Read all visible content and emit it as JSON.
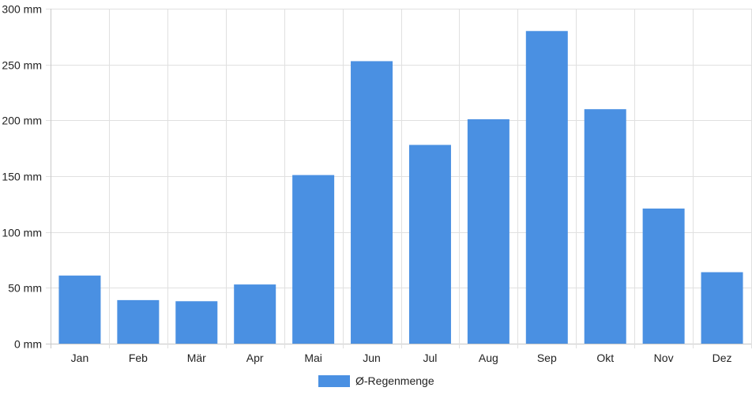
{
  "chart_data": {
    "type": "bar",
    "categories": [
      "Jan",
      "Feb",
      "Mär",
      "Apr",
      "Mai",
      "Jun",
      "Jul",
      "Aug",
      "Sep",
      "Okt",
      "Nov",
      "Dez"
    ],
    "series": [
      {
        "name": "Ø-Regenmenge",
        "values": [
          61,
          39,
          38,
          53,
          151,
          253,
          178,
          201,
          280,
          210,
          121,
          64
        ],
        "color": "#4a90e2"
      }
    ],
    "ylim": [
      0,
      300
    ],
    "yticks": [
      {
        "value": 0,
        "label": "0 mm"
      },
      {
        "value": 50,
        "label": "50 mm"
      },
      {
        "value": 100,
        "label": "100 mm"
      },
      {
        "value": 150,
        "label": "150 mm"
      },
      {
        "value": 200,
        "label": "200 mm"
      },
      {
        "value": 250,
        "label": "250 mm"
      },
      {
        "value": 300,
        "label": "300 mm"
      }
    ],
    "grid": true,
    "legend_position": "bottom",
    "colors": {
      "grid": "#e0e0e0",
      "axis": "#c8c8c8",
      "bar": "#4a90e2"
    }
  }
}
